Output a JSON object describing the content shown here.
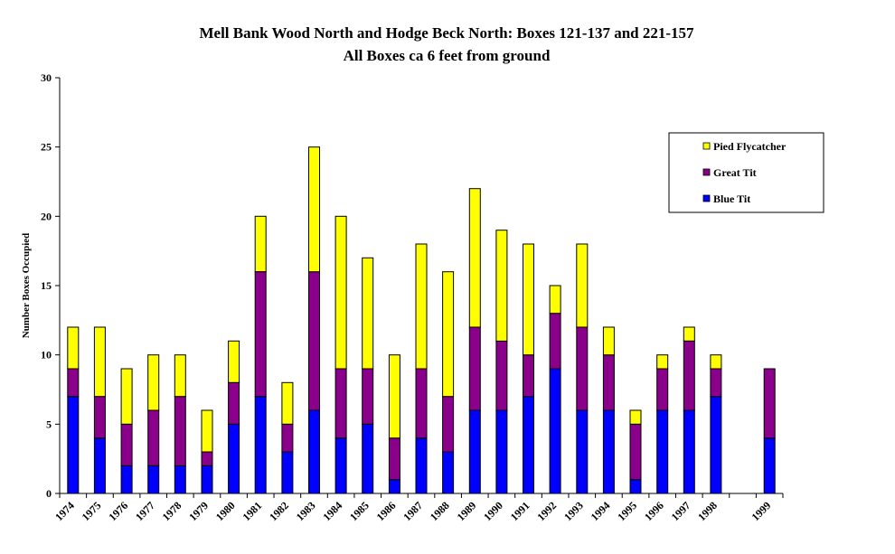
{
  "chart_data": {
    "type": "bar",
    "stacked": true,
    "title": "Mell Bank Wood North and Hodge Beck North: Boxes 121-137 and 221-157",
    "subtitle": "All Boxes ca 6 feet from ground",
    "xlabel": "",
    "ylabel": "Number Boxes Occupied",
    "ylim": [
      0,
      30
    ],
    "yticks": [
      0,
      5,
      10,
      15,
      20,
      25,
      30
    ],
    "grid": false,
    "legend_position": "right",
    "categories": [
      "1974",
      "1975",
      "1976",
      "1977",
      "1978",
      "1979",
      "1980",
      "1981",
      "1982",
      "1983",
      "1984",
      "1985",
      "1986",
      "1987",
      "1988",
      "1989",
      "1990",
      "1991",
      "1992",
      "1993",
      "1994",
      "1995",
      "1996",
      "1997",
      "1998",
      "",
      "1999"
    ],
    "category_labels": [
      "1974",
      "1975",
      "1976",
      "1977",
      "1978",
      "1979",
      "1980",
      "1981",
      "1982",
      "1983",
      "1984",
      "1985",
      "1986",
      "1987",
      "1988",
      "1989",
      "1990",
      "1991",
      "1992",
      "1993",
      "1994",
      "1995",
      "1996",
      "1997",
      "1998",
      "",
      "1999"
    ],
    "series": [
      {
        "name": "Blue Tit",
        "color": "#0000ff",
        "values": [
          7,
          4,
          2,
          2,
          2,
          2,
          5,
          7,
          3,
          6,
          4,
          5,
          1,
          4,
          3,
          6,
          6,
          7,
          9,
          6,
          6,
          1,
          6,
          6,
          7,
          0,
          4
        ]
      },
      {
        "name": "Great Tit",
        "color": "#8b008b",
        "values": [
          2,
          3,
          3,
          4,
          5,
          1,
          3,
          9,
          2,
          10,
          5,
          4,
          3,
          5,
          4,
          6,
          5,
          3,
          4,
          6,
          4,
          4,
          3,
          5,
          2,
          0,
          5
        ]
      },
      {
        "name": "Pied Flycatcher",
        "color": "#ffff00",
        "values": [
          3,
          5,
          4,
          4,
          3,
          3,
          3,
          4,
          3,
          9,
          11,
          8,
          6,
          9,
          9,
          10,
          8,
          8,
          2,
          6,
          2,
          1,
          1,
          1,
          1,
          0,
          0
        ]
      }
    ],
    "legend_order": [
      "Pied Flycatcher",
      "Great Tit",
      "Blue Tit"
    ]
  }
}
